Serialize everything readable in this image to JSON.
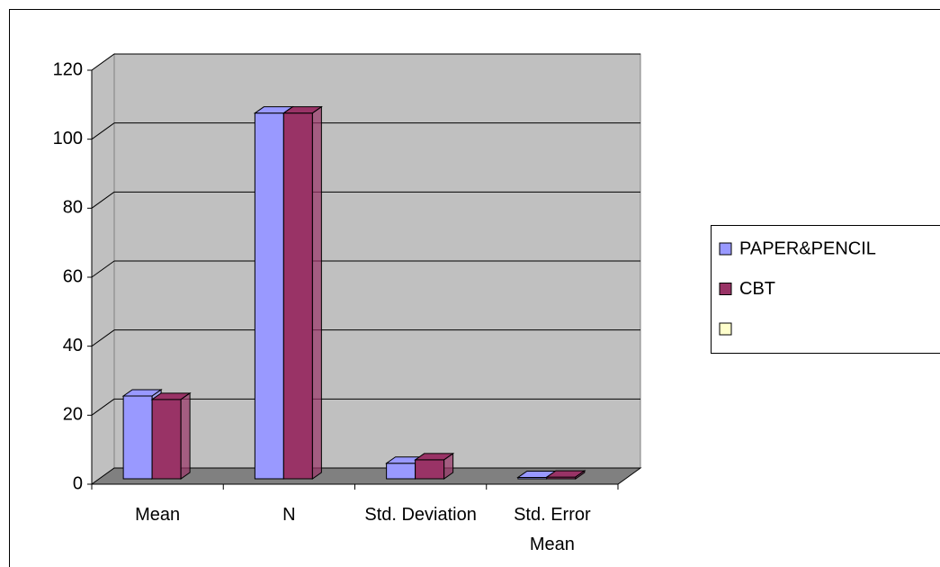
{
  "chart_data": {
    "type": "bar3d",
    "categories": [
      "Mean",
      "N",
      "Std. Deviation",
      "Std. Error Mean"
    ],
    "series": [
      {
        "name": "PAPER&PENCIL",
        "color": "#9999ff",
        "values": [
          24,
          106,
          4.5,
          0.4
        ]
      },
      {
        "name": "CBT",
        "color": "#993366",
        "values": [
          23,
          106,
          5.5,
          0.5
        ]
      },
      {
        "name": null,
        "color": "#ffffcc",
        "values": [
          null,
          null,
          null,
          null
        ]
      }
    ],
    "ylim": [
      0,
      120
    ],
    "yticks": [
      0,
      20,
      40,
      60,
      80,
      100,
      120
    ],
    "grid": true,
    "legend": "right"
  }
}
